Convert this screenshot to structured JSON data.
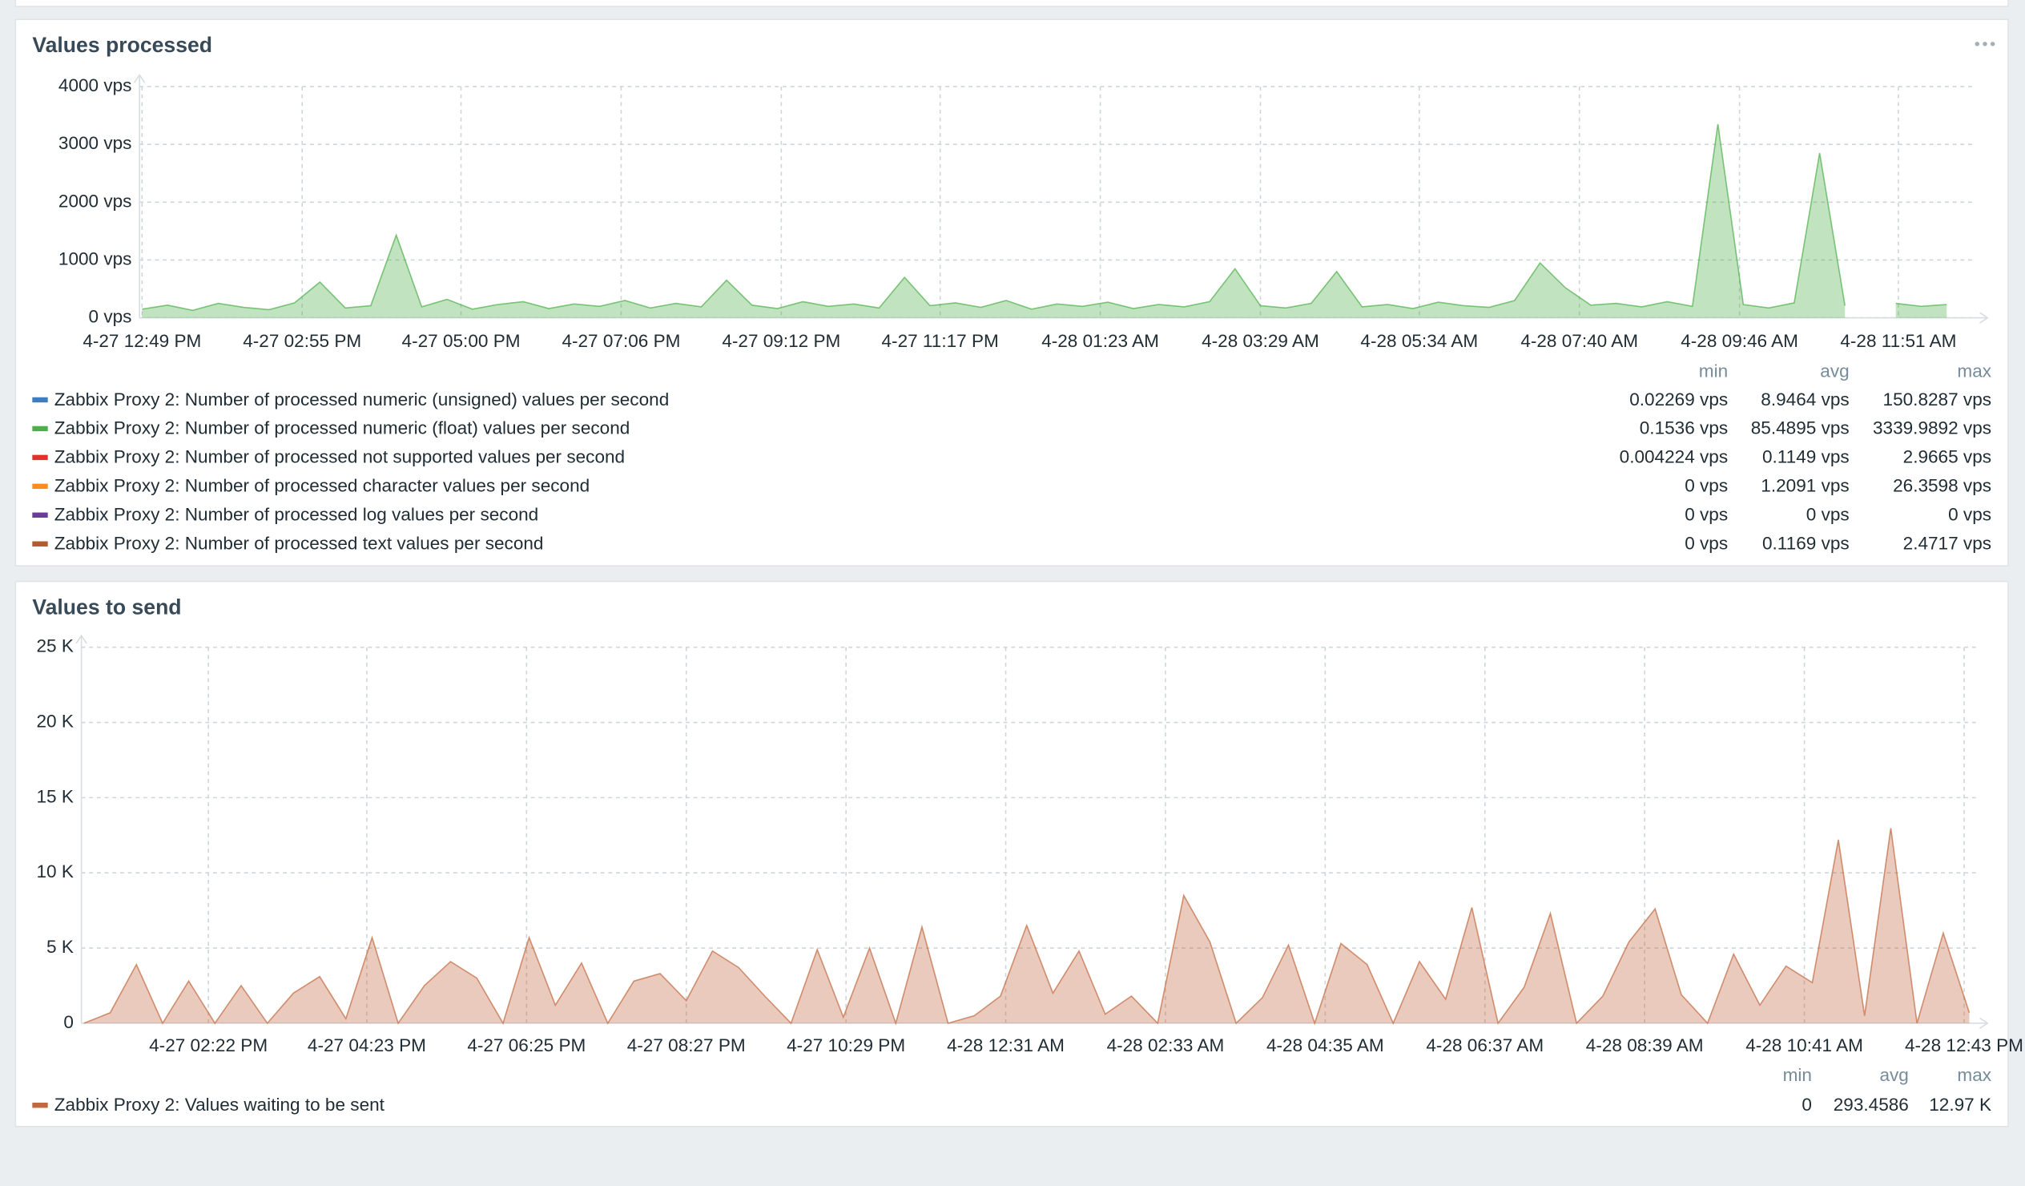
{
  "chart_data": [
    {
      "type": "line",
      "title": "Values processed",
      "x": [
        0,
        20,
        40,
        60,
        80,
        100,
        120,
        140,
        160,
        180,
        200,
        220,
        240,
        260,
        280,
        300,
        320,
        340,
        360,
        380,
        400,
        420,
        440,
        460,
        480,
        500,
        520,
        540,
        560,
        580,
        600,
        620,
        640,
        660,
        680,
        700,
        720,
        740,
        760,
        780,
        800,
        820,
        840,
        860,
        880,
        900,
        920,
        940,
        960,
        980,
        1000,
        1020,
        1040,
        1060,
        1080,
        1100,
        1120,
        1140,
        1160,
        1180,
        1200,
        1220,
        1240,
        1260,
        1280,
        1300,
        1320,
        1340,
        1360,
        1380,
        1400,
        1420
      ],
      "xlim": [
        -2,
        1443
      ],
      "xticks": [
        {
          "value": 0,
          "label": "4-27 12:49 PM"
        },
        {
          "value": 126,
          "label": "4-27 02:55 PM"
        },
        {
          "value": 251,
          "label": "4-27 05:00 PM"
        },
        {
          "value": 377,
          "label": "4-27 07:06 PM"
        },
        {
          "value": 503,
          "label": "4-27 09:12 PM"
        },
        {
          "value": 628,
          "label": "4-27 11:17 PM"
        },
        {
          "value": 754,
          "label": "4-28 01:23 AM"
        },
        {
          "value": 880,
          "label": "4-28 03:29 AM"
        },
        {
          "value": 1005,
          "label": "4-28 05:34 AM"
        },
        {
          "value": 1131,
          "label": "4-28 07:40 AM"
        },
        {
          "value": 1257,
          "label": "4-28 09:46 AM"
        },
        {
          "value": 1382,
          "label": "4-28 11:51 AM"
        }
      ],
      "ylim": [
        0,
        4000
      ],
      "yticks": [
        {
          "value": 0,
          "label": "0 vps"
        },
        {
          "value": 1000,
          "label": "1000 vps"
        },
        {
          "value": 2000,
          "label": "2000 vps"
        },
        {
          "value": 3000,
          "label": "3000 vps"
        },
        {
          "value": 4000,
          "label": "4000 vps"
        }
      ],
      "grid": true,
      "legend_headers": [
        "min",
        "avg",
        "max"
      ],
      "series": [
        {
          "name": "Zabbix Proxy 2: Number of processed numeric (unsigned) values per second",
          "color": "#3f7cba",
          "stats": [
            "0.02269 vps",
            "8.9464 vps",
            "150.8287 vps"
          ]
        },
        {
          "name": "Zabbix Proxy 2: Number of processed numeric (float) values per second",
          "color": "#4daf4a",
          "stats": [
            "0.1536 vps",
            "85.4895 vps",
            "3339.9892 vps"
          ],
          "values": [
            150,
            220,
            130,
            250,
            180,
            140,
            260,
            620,
            170,
            210,
            1430,
            190,
            320,
            150,
            230,
            280,
            160,
            240,
            200,
            300,
            170,
            250,
            190,
            650,
            220,
            160,
            280,
            200,
            240,
            170,
            700,
            210,
            260,
            180,
            300,
            150,
            240,
            200,
            270,
            160,
            230,
            190,
            280,
            850,
            210,
            170,
            250,
            800,
            190,
            230,
            160,
            270,
            210,
            180,
            300,
            950,
            520,
            220,
            250,
            190,
            280,
            200,
            3350,
            230,
            170,
            260,
            2850,
            210,
            null,
            250,
            200,
            230
          ]
        },
        {
          "name": "Zabbix Proxy 2: Number of processed not supported values per second",
          "color": "#e0312e",
          "stats": [
            "0.004224 vps",
            "0.1149 vps",
            "2.9665 vps"
          ]
        },
        {
          "name": "Zabbix Proxy 2: Number of processed character values per second",
          "color": "#ff8c1a",
          "stats": [
            "0 vps",
            "1.2091 vps",
            "26.3598 vps"
          ]
        },
        {
          "name": "Zabbix Proxy 2: Number of processed log values per second",
          "color": "#6a3d9a",
          "stats": [
            "0 vps",
            "0 vps",
            "0 vps"
          ]
        },
        {
          "name": "Zabbix Proxy 2: Number of processed text values per second",
          "color": "#b35a2e",
          "stats": [
            "0 vps",
            "0.1169 vps",
            "2.4717 vps"
          ]
        }
      ]
    },
    {
      "type": "line",
      "title": "Values to send",
      "x": [
        -95,
        -75,
        -55,
        -35,
        -15,
        5,
        25,
        45,
        65,
        85,
        105,
        125,
        145,
        165,
        185,
        205,
        225,
        245,
        265,
        285,
        305,
        325,
        345,
        365,
        385,
        405,
        425,
        445,
        465,
        485,
        505,
        525,
        545,
        565,
        585,
        605,
        625,
        645,
        665,
        685,
        705,
        725,
        745,
        765,
        785,
        805,
        825,
        845,
        865,
        885,
        905,
        925,
        945,
        965,
        985,
        1005,
        1025,
        1045,
        1065,
        1085,
        1105,
        1125,
        1145,
        1165,
        1185,
        1205,
        1225,
        1245,
        1265,
        1285,
        1305,
        1325,
        1345
      ],
      "xlim": [
        -97,
        1350
      ],
      "xticks": [
        {
          "value": 0,
          "label": "4-27 02:22 PM"
        },
        {
          "value": 121,
          "label": "4-27 04:23 PM"
        },
        {
          "value": 243,
          "label": "4-27 06:25 PM"
        },
        {
          "value": 365,
          "label": "4-27 08:27 PM"
        },
        {
          "value": 487,
          "label": "4-27 10:29 PM"
        },
        {
          "value": 609,
          "label": "4-28 12:31 AM"
        },
        {
          "value": 731,
          "label": "4-28 02:33 AM"
        },
        {
          "value": 853,
          "label": "4-28 04:35 AM"
        },
        {
          "value": 975,
          "label": "4-28 06:37 AM"
        },
        {
          "value": 1097,
          "label": "4-28 08:39 AM"
        },
        {
          "value": 1219,
          "label": "4-28 10:41 AM"
        },
        {
          "value": 1341,
          "label": "4-28 12:43 PM"
        }
      ],
      "ylim": [
        0,
        25000
      ],
      "yticks": [
        0,
        {
          "value": 5000,
          "label": "5 K"
        },
        {
          "value": 10000,
          "label": "10 K"
        },
        {
          "value": 15000,
          "label": "15 K"
        },
        {
          "value": 20000,
          "label": "20 K"
        },
        {
          "value": 25000,
          "label": "25 K"
        }
      ],
      "grid": true,
      "legend_headers": [
        "min",
        "avg",
        "max"
      ],
      "series": [
        {
          "name": "Zabbix Proxy 2: Values waiting to be sent",
          "color": "#c0683f",
          "stats": [
            "0",
            "293.4586",
            "12.97 K"
          ],
          "values": [
            0,
            700,
            3900,
            0,
            2800,
            0,
            2500,
            0,
            2000,
            3100,
            300,
            5700,
            0,
            2500,
            4100,
            3000,
            0,
            5700,
            1200,
            4000,
            0,
            2800,
            3300,
            1500,
            4800,
            3700,
            1800,
            0,
            4900,
            400,
            5000,
            0,
            6400,
            0,
            500,
            1800,
            6500,
            2000,
            4800,
            600,
            1800,
            0,
            8500,
            5400,
            0,
            1700,
            5200,
            0,
            5300,
            3900,
            0,
            4100,
            1600,
            7700,
            0,
            2400,
            7300,
            0,
            1800,
            5400,
            7600,
            1900,
            0,
            4600,
            1200,
            3800,
            2700,
            12200,
            500,
            12970,
            0,
            6000,
            700
          ]
        }
      ]
    }
  ]
}
